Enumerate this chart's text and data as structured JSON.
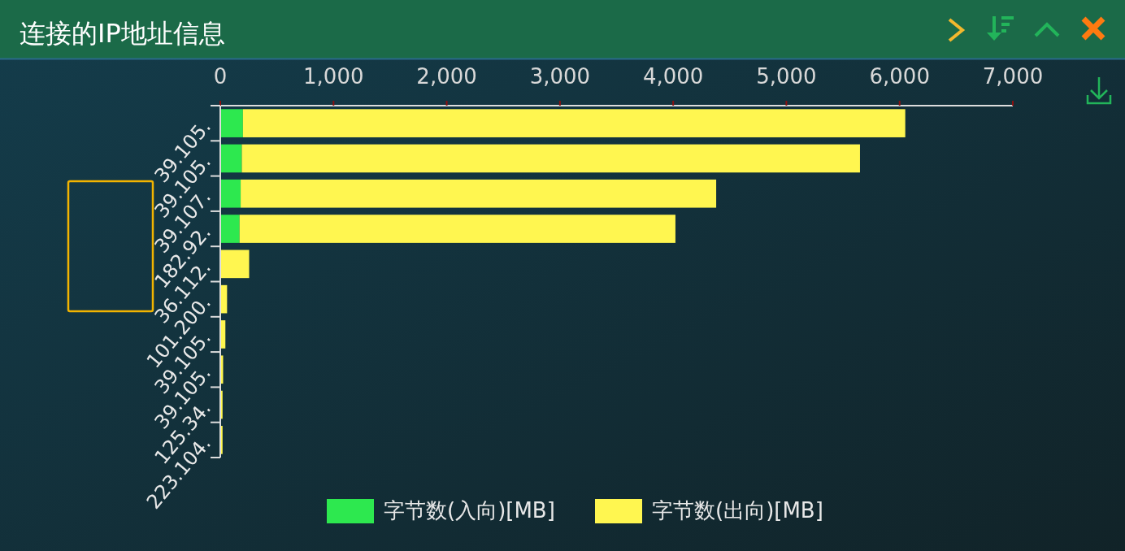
{
  "chart_data": {
    "type": "bar",
    "orientation": "horizontal",
    "stacked": true,
    "title": "连接的IP地址信息",
    "categories": [
      "39.105.",
      "39.105.",
      "39.107.",
      "182.92.",
      "36.112.",
      "101.200.",
      "39.105.",
      "39.105.",
      "125.34.",
      "223.104."
    ],
    "series": [
      {
        "name": "字节数(入向)[MB]",
        "color": "#2de84f",
        "values": [
          200,
          190,
          180,
          170,
          null,
          null,
          null,
          null,
          null,
          null
        ]
      },
      {
        "name": "字节数(出向)[MB]",
        "color": "#fff650",
        "values": [
          5850,
          5460,
          4200,
          3850,
          255,
          60,
          45,
          25,
          20,
          20
        ]
      }
    ],
    "xlim": [
      0,
      7000
    ],
    "xticks": [
      0,
      {
        "value": 1000,
        "label": "1,000"
      },
      {
        "value": 2000,
        "label": "2,000"
      },
      {
        "value": 3000,
        "label": "3,000"
      },
      {
        "value": 4000,
        "label": "4,000"
      },
      {
        "value": 5000,
        "label": "5,000"
      },
      {
        "value": 6000,
        "label": "6,000"
      },
      {
        "value": 7000,
        "label": "7,000"
      }
    ],
    "legend": "bottom"
  }
}
